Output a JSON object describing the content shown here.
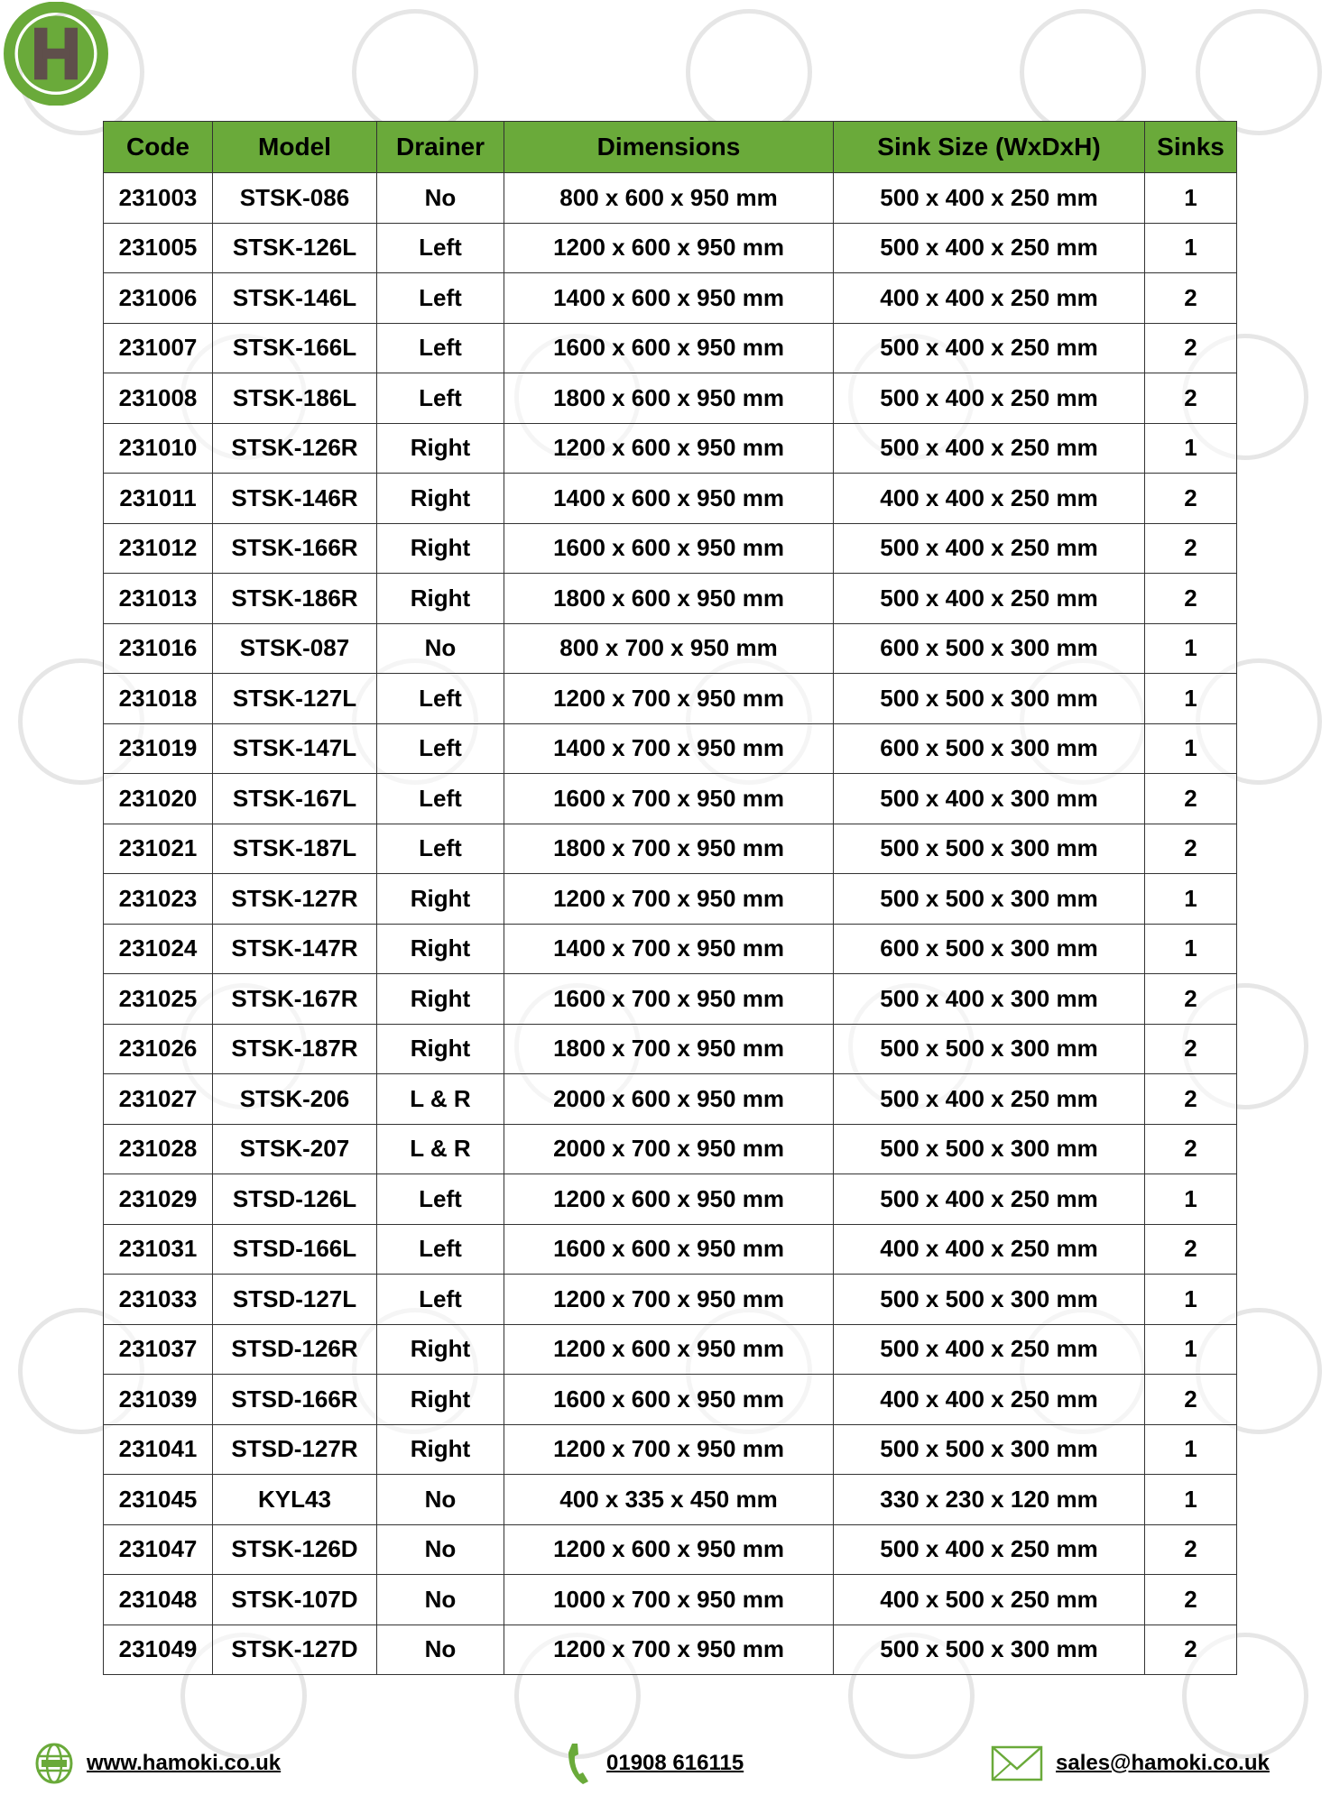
{
  "brand": {
    "logo_letter": "H",
    "accent": "#6aaa3a",
    "logo_letter_color": "#5f4f4b"
  },
  "table": {
    "headers": [
      "Code",
      "Model",
      "Drainer",
      "Dimensions",
      "Sink Size (WxDxH)",
      "Sinks"
    ],
    "rows": [
      [
        "231003",
        "STSK-086",
        "No",
        "800 x 600 x 950 mm",
        "500 x 400 x 250 mm",
        "1"
      ],
      [
        "231005",
        "STSK-126L",
        "Left",
        "1200 x 600 x 950 mm",
        "500 x 400 x 250 mm",
        "1"
      ],
      [
        "231006",
        "STSK-146L",
        "Left",
        "1400 x 600 x 950 mm",
        "400 x 400 x 250 mm",
        "2"
      ],
      [
        "231007",
        "STSK-166L",
        "Left",
        "1600 x 600 x 950 mm",
        "500 x 400 x 250 mm",
        "2"
      ],
      [
        "231008",
        "STSK-186L",
        "Left",
        "1800 x 600 x 950 mm",
        "500 x 400 x 250 mm",
        "2"
      ],
      [
        "231010",
        "STSK-126R",
        "Right",
        "1200 x 600 x 950 mm",
        "500 x 400 x 250 mm",
        "1"
      ],
      [
        "231011",
        "STSK-146R",
        "Right",
        "1400 x 600 x 950 mm",
        "400 x 400 x 250 mm",
        "2"
      ],
      [
        "231012",
        "STSK-166R",
        "Right",
        "1600 x 600 x 950 mm",
        "500 x 400 x 250 mm",
        "2"
      ],
      [
        "231013",
        "STSK-186R",
        "Right",
        "1800 x 600 x 950 mm",
        "500 x 400 x 250 mm",
        "2"
      ],
      [
        "231016",
        "STSK-087",
        "No",
        "800 x 700 x 950 mm",
        "600 x 500 x 300 mm",
        "1"
      ],
      [
        "231018",
        "STSK-127L",
        "Left",
        "1200 x 700 x 950 mm",
        "500 x 500 x 300 mm",
        "1"
      ],
      [
        "231019",
        "STSK-147L",
        "Left",
        "1400 x 700 x 950 mm",
        "600 x 500 x 300 mm",
        "1"
      ],
      [
        "231020",
        "STSK-167L",
        "Left",
        "1600 x 700 x 950 mm",
        "500 x 400 x 300 mm",
        "2"
      ],
      [
        "231021",
        "STSK-187L",
        "Left",
        "1800 x 700 x 950 mm",
        "500 x 500 x 300 mm",
        "2"
      ],
      [
        "231023",
        "STSK-127R",
        "Right",
        "1200 x 700 x 950 mm",
        "500 x 500 x 300 mm",
        "1"
      ],
      [
        "231024",
        "STSK-147R",
        "Right",
        "1400 x 700 x 950 mm",
        "600 x 500 x 300 mm",
        "1"
      ],
      [
        "231025",
        "STSK-167R",
        "Right",
        "1600 x 700 x 950 mm",
        "500 x 400 x 300 mm",
        "2"
      ],
      [
        "231026",
        "STSK-187R",
        "Right",
        "1800 x 700 x 950 mm",
        "500 x 500 x 300 mm",
        "2"
      ],
      [
        "231027",
        "STSK-206",
        "L & R",
        "2000 x 600 x 950 mm",
        "500 x 400 x 250 mm",
        "2"
      ],
      [
        "231028",
        "STSK-207",
        "L & R",
        "2000 x 700 x 950 mm",
        "500 x 500 x 300 mm",
        "2"
      ],
      [
        "231029",
        "STSD-126L",
        "Left",
        "1200 x 600 x 950 mm",
        "500 x 400 x 250 mm",
        "1"
      ],
      [
        "231031",
        "STSD-166L",
        "Left",
        "1600 x 600 x 950 mm",
        "400 x 400 x 250 mm",
        "2"
      ],
      [
        "231033",
        "STSD-127L",
        "Left",
        "1200 x 700 x 950 mm",
        "500 x 500 x 300 mm",
        "1"
      ],
      [
        "231037",
        "STSD-126R",
        "Right",
        "1200 x 600 x 950 mm",
        "500 x 400 x 250 mm",
        "1"
      ],
      [
        "231039",
        "STSD-166R",
        "Right",
        "1600 x 600 x 950 mm",
        "400 x 400 x 250 mm",
        "2"
      ],
      [
        "231041",
        "STSD-127R",
        "Right",
        "1200 x 700 x 950 mm",
        "500 x 500 x 300 mm",
        "1"
      ],
      [
        "231045",
        "KYL43",
        "No",
        "400 x 335 x 450 mm",
        "330 x 230 x 120 mm",
        "1"
      ],
      [
        "231047",
        "STSK-126D",
        "No",
        "1200 x 600 x 950 mm",
        "500 x 400 x 250 mm",
        "2"
      ],
      [
        "231048",
        "STSK-107D",
        "No",
        "1000 x 700 x 950 mm",
        "400 x 500 x 250 mm",
        "2"
      ],
      [
        "231049",
        "STSK-127D",
        "No",
        "1200 x 700 x 950 mm",
        "500 x 500 x 300 mm",
        "2"
      ]
    ]
  },
  "footer": {
    "website": "www.hamoki.co.uk",
    "phone": "01908 616115",
    "email": "sales@hamoki.co.uk"
  }
}
